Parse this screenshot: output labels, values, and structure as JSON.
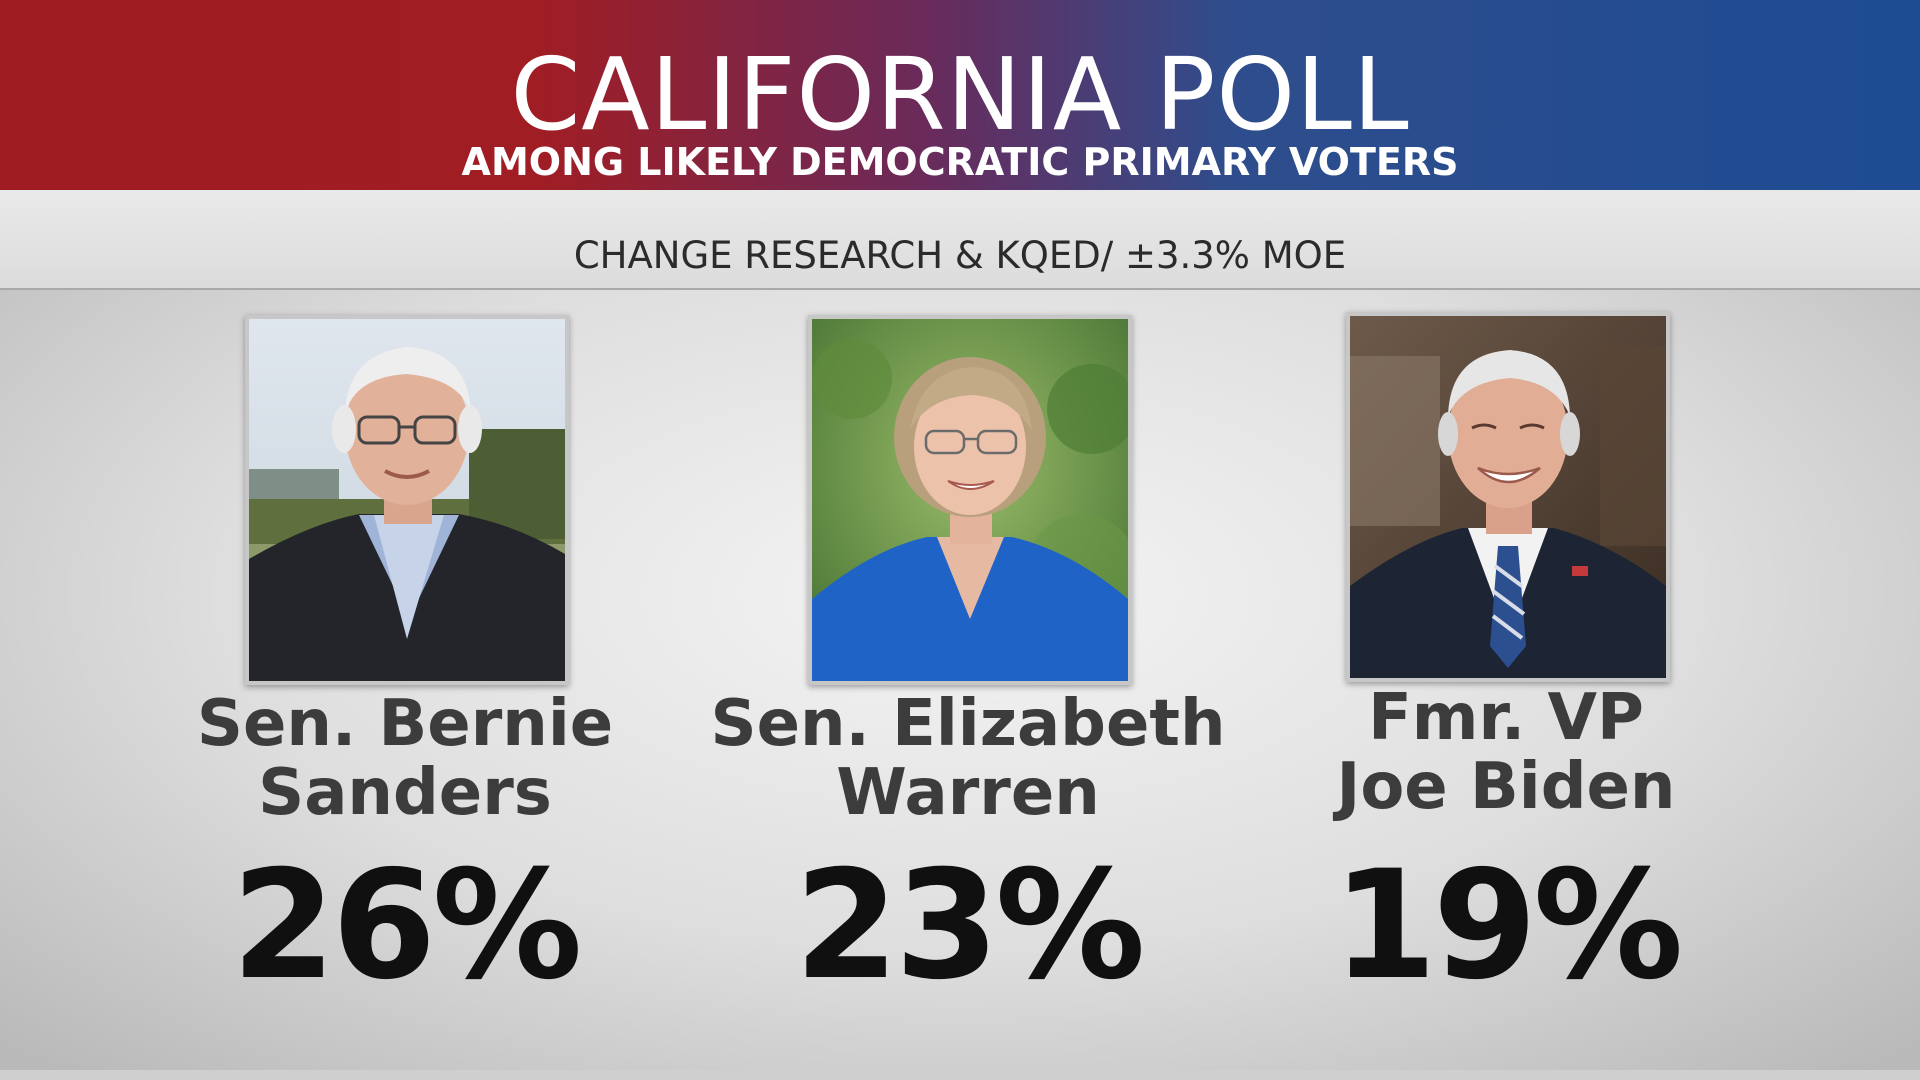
{
  "header": {
    "title": "CALIFORNIA POLL",
    "subtitle": "AMONG LIKELY DEMOCRATIC PRIMARY VOTERS",
    "source": "CHANGE RESEARCH & KQED/ ±3.3% MOE"
  },
  "colors": {
    "header_left": "#9e1c22",
    "header_right": "#1d4c93",
    "name_text": "#3c3c3c",
    "percent_text": "#101010"
  },
  "candidates": [
    {
      "name_line1": "Sen. Bernie",
      "name_line2": "Sanders",
      "percent": "26%",
      "percent_value": 26,
      "photo": "portrait-bernie-sanders"
    },
    {
      "name_line1": "Sen. Elizabeth",
      "name_line2": "Warren",
      "percent": "23%",
      "percent_value": 23,
      "photo": "portrait-elizabeth-warren"
    },
    {
      "name_line1": "Fmr. VP",
      "name_line2": "Joe Biden",
      "percent": "19%",
      "percent_value": 19,
      "photo": "portrait-joe-biden"
    }
  ]
}
